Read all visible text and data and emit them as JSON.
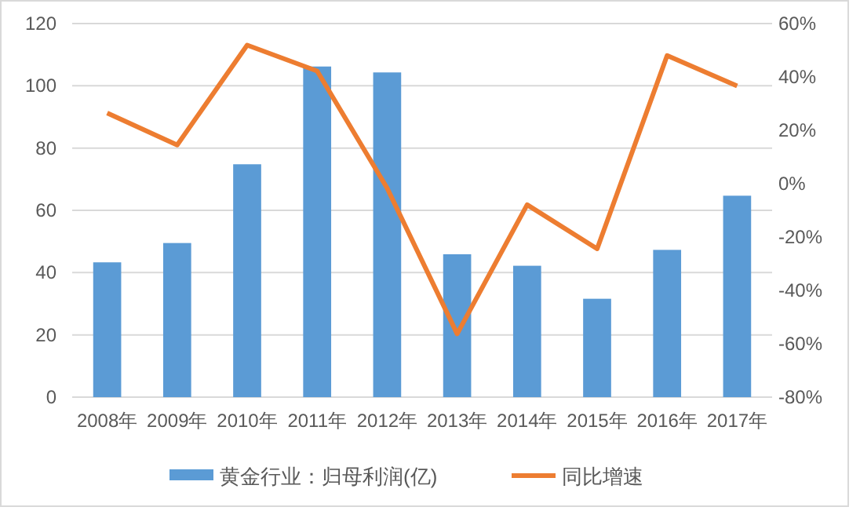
{
  "chart_data": {
    "type": "bar",
    "categories": [
      "2008年",
      "2009年",
      "2010年",
      "2011年",
      "2012年",
      "2013年",
      "2014年",
      "2015年",
      "2016年",
      "2017年"
    ],
    "series": [
      {
        "name": "黄金行业：归母利润(亿)",
        "color": "#5b9bd5",
        "values": [
          43.3,
          49.5,
          74.8,
          106.2,
          104.3,
          45.9,
          42.2,
          31.6,
          47.3,
          64.7
        ]
      },
      {
        "name": "同比增速",
        "type": "line",
        "axis": "y2",
        "color": "#ed7d31",
        "values": [
          26.5,
          14.5,
          51.9,
          42.2,
          -1.7,
          -56.3,
          -7.9,
          -24.4,
          48,
          36.6
        ]
      }
    ],
    "ylim": [
      0,
      120
    ],
    "yticks": [
      0,
      20,
      40,
      60,
      80,
      100,
      120
    ],
    "y2lim": [
      -80,
      60
    ],
    "y2ticks": [
      {
        "value": -80,
        "label": "-80%"
      },
      {
        "value": -60,
        "label": "-60%"
      },
      {
        "value": -40,
        "label": "-40%"
      },
      {
        "value": -20,
        "label": "-20%"
      },
      {
        "value": 0,
        "label": "0%"
      },
      {
        "value": 20,
        "label": "20%"
      },
      {
        "value": 40,
        "label": "40%"
      },
      {
        "value": 60,
        "label": "60%"
      }
    ],
    "grid": "y",
    "legend": "bottom",
    "marker": "none",
    "line_style": "solid"
  }
}
